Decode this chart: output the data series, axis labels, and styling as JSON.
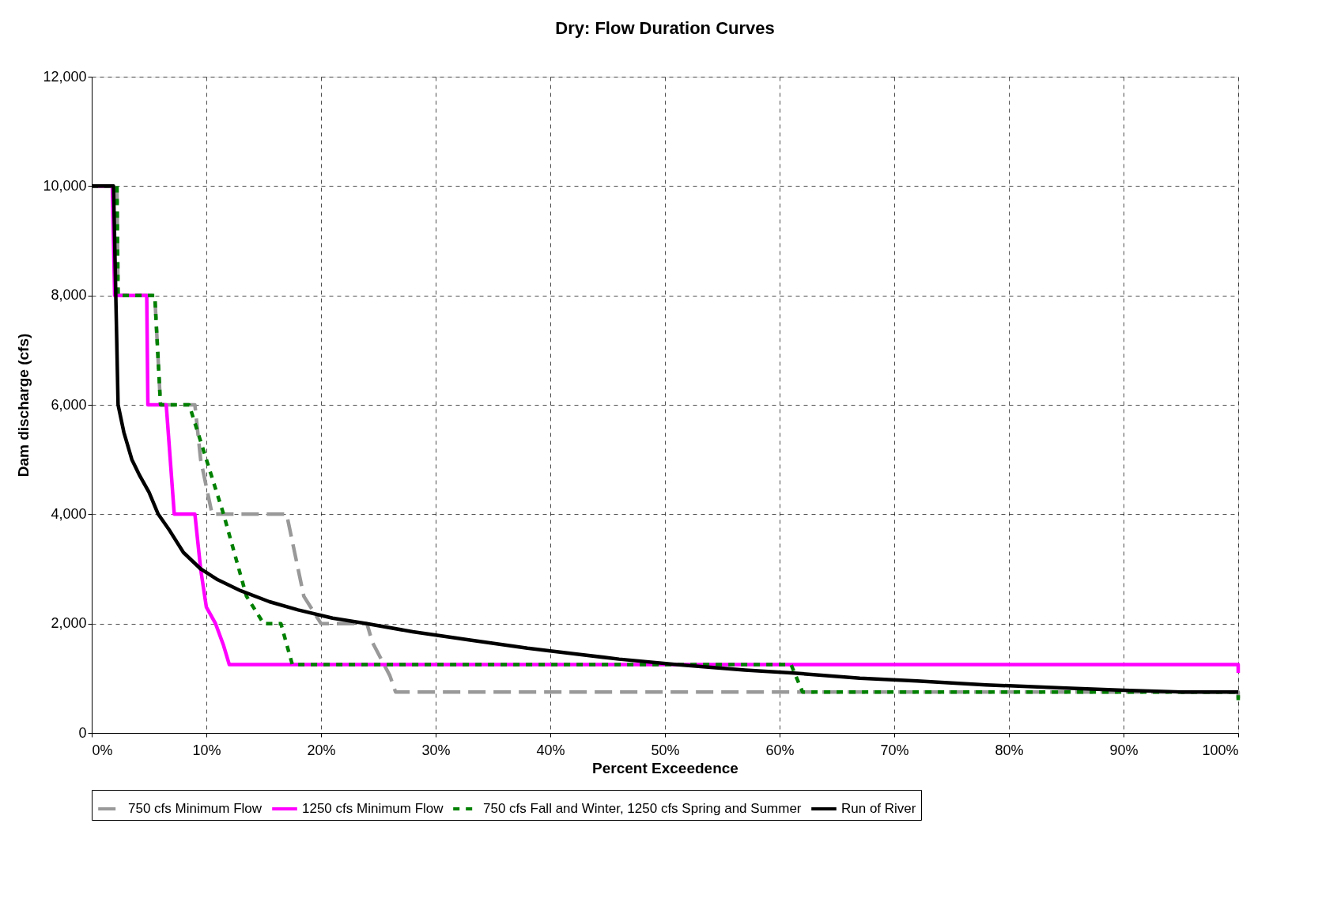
{
  "chart_data": {
    "type": "line",
    "title": "Dry: Flow Duration Curves",
    "xlabel": "Percent Exceedence",
    "ylabel": "Dam discharge (cfs)",
    "xlim": [
      0,
      100
    ],
    "ylim": [
      0,
      12000
    ],
    "xticks": [
      {
        "value": 0,
        "label": "0%"
      },
      {
        "value": 10,
        "label": "10%"
      },
      {
        "value": 20,
        "label": "20%"
      },
      {
        "value": 30,
        "label": "30%"
      },
      {
        "value": 40,
        "label": "40%"
      },
      {
        "value": 50,
        "label": "50%"
      },
      {
        "value": 60,
        "label": "60%"
      },
      {
        "value": 70,
        "label": "70%"
      },
      {
        "value": 80,
        "label": "80%"
      },
      {
        "value": 90,
        "label": "90%"
      },
      {
        "value": 100,
        "label": "100%"
      }
    ],
    "yticks": [
      0,
      {
        "value": 2000,
        "label": "2,000"
      },
      {
        "value": 4000,
        "label": "4,000"
      },
      {
        "value": 6000,
        "label": "6,000"
      },
      {
        "value": 8000,
        "label": "8,000"
      },
      {
        "value": 10000,
        "label": "10,000"
      },
      {
        "value": 12000,
        "label": "12,000"
      }
    ],
    "grid": true,
    "legend": "bottom",
    "marker": "none",
    "series": [
      {
        "name": "750 cfs Minimum Flow",
        "color": "#999999",
        "line_style": "dashed",
        "x": [
          0,
          2.2,
          2.3,
          5.5,
          6.0,
          9.0,
          9.5,
          10.5,
          17.0,
          17.5,
          18.5,
          20.0,
          24.0,
          24.5,
          26.0,
          26.5,
          100,
          100
        ],
        "values": [
          10000,
          10000,
          8000,
          8000,
          6000,
          6000,
          5000,
          4000,
          4000,
          3500,
          2500,
          2000,
          2000,
          1650,
          1050,
          750,
          750,
          600
        ]
      },
      {
        "name": "1250 cfs Minimum Flow",
        "color": "#ff00ff",
        "line_style": "solid",
        "x": [
          0,
          1.8,
          2.0,
          4.8,
          4.9,
          6.5,
          7.2,
          9.0,
          9.5,
          10.0,
          10.8,
          11.5,
          12.0,
          100,
          100
        ],
        "values": [
          10000,
          10000,
          8000,
          8000,
          6000,
          6000,
          4000,
          4000,
          3000,
          2300,
          2000,
          1600,
          1250,
          1250,
          1100
        ]
      },
      {
        "name": "750 cfs Fall and Winter, 1250 cfs Spring and Summer",
        "color": "#008000",
        "line_style": "dotted",
        "x": [
          0,
          2.2,
          2.3,
          5.5,
          6.0,
          8.5,
          10.0,
          11.5,
          13.5,
          15.0,
          16.5,
          17.5,
          61.0,
          62.0,
          100,
          100
        ],
        "values": [
          10000,
          10000,
          8000,
          8000,
          6000,
          6000,
          5000,
          4000,
          2500,
          2000,
          2000,
          1250,
          1250,
          750,
          750,
          600
        ]
      },
      {
        "name": "Run of River",
        "color": "#000000",
        "line_style": "solid",
        "x": [
          0,
          1.9,
          2.1,
          2.3,
          2.8,
          3.5,
          4.2,
          5.0,
          5.8,
          6.8,
          8.0,
          9.5,
          11.0,
          13.0,
          15.5,
          18.0,
          21.0,
          24.0,
          28.0,
          33.0,
          38.0,
          42.0,
          46.0,
          51.0,
          57.0,
          61.0,
          67.0,
          72.0,
          78.0,
          85.0,
          90.0,
          95.0,
          100
        ],
        "values": [
          10000,
          10000,
          8000,
          6000,
          5500,
          5000,
          4700,
          4400,
          4000,
          3700,
          3300,
          3000,
          2800,
          2600,
          2400,
          2250,
          2100,
          2000,
          1850,
          1700,
          1550,
          1450,
          1350,
          1250,
          1150,
          1100,
          1000,
          950,
          880,
          820,
          780,
          750,
          750
        ]
      }
    ]
  }
}
